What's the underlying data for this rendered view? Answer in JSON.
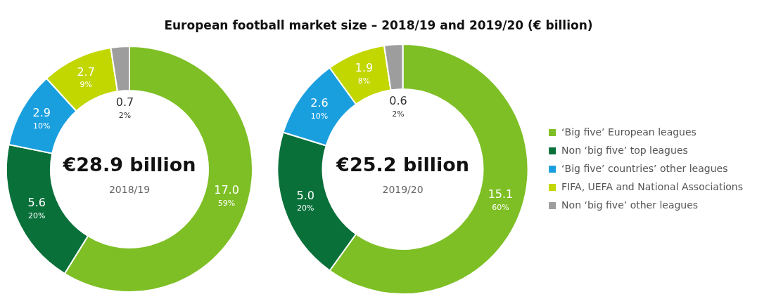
{
  "chart_data": [
    {
      "type": "donut",
      "title": "European football market size – 2018/19 and 2019/20 (€ billion)",
      "categories": [
        null,
        null,
        null,
        null,
        null
      ],
      "values": [
        17.0,
        5.6,
        2.9,
        2.7,
        0.7
      ],
      "colors": [
        "#7dbf24",
        "#09703a",
        "#1a9fde",
        "#c2d600",
        "#9d9d9d"
      ],
      "value_labels": [
        "17.0\n59%",
        "5.6\n20%",
        "2.9\n10%",
        "2.7\n9%",
        "0.7\n2%"
      ],
      "annotations": [
        "€28.9 billion",
        "2018/19"
      ]
    },
    {
      "type": "donut",
      "categories": [
        "‘Big five’ European leagues",
        "Non ‘big five’ top leagues",
        "‘Big five’ countries’ other leagues",
        "FIFA, UEFA and National Associations",
        "Non ‘big five’ other leagues"
      ],
      "values": [
        15.1,
        5.0,
        2.6,
        1.9,
        0.6
      ],
      "colors": [
        "#7dbf24",
        "#09703a",
        "#1a9fde",
        "#c2d600",
        "#9d9d9d"
      ],
      "value_labels": [
        "15.1\n60%",
        "5.0\n20%",
        "2.6\n10%",
        "1.9\n8%",
        "0.6\n2%"
      ],
      "annotations": [
        "€25.2 billion",
        "2019/20"
      ],
      "legend": "right"
    }
  ]
}
